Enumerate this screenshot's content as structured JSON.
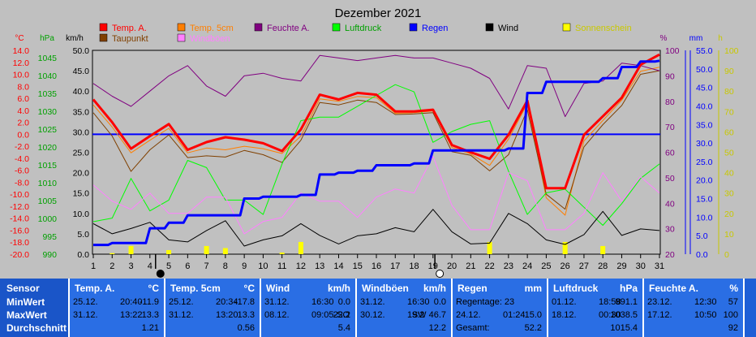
{
  "chart_data": {
    "type": "line",
    "title": "Dezember 2021",
    "x": [
      1,
      2,
      3,
      4,
      5,
      6,
      7,
      8,
      9,
      10,
      11,
      12,
      13,
      14,
      15,
      16,
      17,
      18,
      19,
      20,
      21,
      22,
      23,
      24,
      25,
      26,
      27,
      28,
      29,
      30,
      31
    ],
    "axes": {
      "temp_c": {
        "label": "°C",
        "ticks": [
          "14.0",
          "12.0",
          "10.0",
          "8.0",
          "6.0",
          "4.0",
          "2.0",
          "0.0",
          "-2.0",
          "-4.0",
          "-6.0",
          "-8.0",
          "-10.0",
          "-12.0",
          "-14.0",
          "-16.0",
          "-18.0",
          "-20.0"
        ],
        "range": [
          -20,
          14
        ]
      },
      "pressure_hpa": {
        "label": "hPa",
        "ticks": [
          "1045",
          "1040",
          "1035",
          "1030",
          "1025",
          "1020",
          "1015",
          "1010",
          "1005",
          "1000",
          "995",
          "990"
        ],
        "range": [
          990,
          1046.5
        ]
      },
      "wind_kmh": {
        "label": "km/h",
        "ticks": [
          "50.0",
          "45.0",
          "40.0",
          "35.0",
          "30.0",
          "25.0",
          "20.0",
          "15.0",
          "10.0",
          "5.0",
          "0.0"
        ],
        "range": [
          0,
          50
        ]
      },
      "humidity_pct": {
        "label": "%",
        "ticks": [
          "100",
          "90",
          "80",
          "70",
          "60",
          "50",
          "40",
          "30",
          "20"
        ],
        "range": [
          20,
          100
        ]
      },
      "rain_mm": {
        "label": "mm",
        "ticks": [
          "55.0",
          "50.0",
          "45.0",
          "40.0",
          "35.0",
          "30.0",
          "25.0",
          "20.0",
          "15.0",
          "10.0",
          "5.0",
          "0.0"
        ],
        "range": [
          0,
          55
        ]
      },
      "sun_h": {
        "label": "h",
        "ticks": [
          "100",
          "90",
          "80",
          "70",
          "60",
          "50",
          "40",
          "30",
          "20",
          "10",
          "0"
        ],
        "range": [
          0,
          100
        ]
      }
    },
    "legend": [
      {
        "name": "Temp. A.",
        "color": "#ff0000"
      },
      {
        "name": "Temp. 5cm",
        "color": "#ff7f00"
      },
      {
        "name": "Feuchte A.",
        "color": "#800080"
      },
      {
        "name": "Luftdruck",
        "color": "#00ff00"
      },
      {
        "name": "Regen",
        "color": "#0000ff"
      },
      {
        "name": "Wind",
        "color": "#000000"
      },
      {
        "name": "Sonnenschein",
        "color": "#ffff00"
      },
      {
        "name": "Taupunkt",
        "color": "#804000"
      },
      {
        "name": "Windböen",
        "color": "#ff80ff"
      }
    ],
    "series": [
      {
        "name": "Temp. A.",
        "axis": "temp_c",
        "color": "#ff0000",
        "width": 3,
        "values": [
          5.8,
          2.0,
          -2.4,
          -0.3,
          1.7,
          -2.6,
          -1.3,
          -0.5,
          -0.9,
          -1.5,
          -2.8,
          0.8,
          6.6,
          5.8,
          6.9,
          6.6,
          3.8,
          3.8,
          4.1,
          -1.8,
          -3.0,
          -4.1,
          -0.1,
          5.6,
          -9.0,
          -9.0,
          -0.1,
          3.0,
          6.1,
          11.6,
          13.3
        ]
      },
      {
        "name": "Temp. 5cm",
        "axis": "temp_c",
        "color": "#ff7f00",
        "width": 1,
        "values": [
          4.9,
          1.2,
          -3.1,
          -1.0,
          1.0,
          -3.1,
          -2.3,
          -2.6,
          -2.0,
          -2.4,
          -3.2,
          -0.3,
          5.9,
          5.5,
          6.3,
          6.1,
          3.5,
          3.6,
          3.9,
          -2.2,
          -3.3,
          -5.2,
          -0.8,
          5.1,
          -10.6,
          -13.5,
          -1.1,
          2.3,
          5.7,
          10.5,
          11.2
        ]
      },
      {
        "name": "Taupunkt",
        "axis": "temp_c",
        "color": "#804000",
        "width": 1,
        "values": [
          3.6,
          -0.3,
          -6.2,
          -2.6,
          -0.1,
          -3.9,
          -3.6,
          -3.8,
          -2.7,
          -3.4,
          -4.7,
          -1.0,
          5.3,
          4.9,
          5.7,
          5.3,
          3.3,
          3.4,
          3.6,
          -2.9,
          -3.5,
          -6.1,
          -3.4,
          4.1,
          -10.0,
          -12.5,
          -2.1,
          1.6,
          4.8,
          10.0,
          10.6
        ]
      },
      {
        "name": "Feuchte A.",
        "axis": "humidity_pct",
        "color": "#800080",
        "width": 1,
        "values": [
          87,
          82,
          78,
          84,
          90,
          94,
          86,
          82,
          90,
          91,
          89,
          88,
          98,
          97,
          96,
          97,
          98,
          97,
          97,
          95,
          93,
          89,
          77,
          94,
          93,
          74,
          87,
          88,
          95,
          94,
          92
        ]
      },
      {
        "name": "Luftdruck",
        "axis": "pressure_hpa",
        "color": "#00ff00",
        "width": 1,
        "values": [
          999,
          1000,
          1011,
          1002,
          1005,
          1016,
          1014,
          1005,
          1005,
          1001,
          1015,
          1027,
          1028,
          1028,
          1031,
          1034,
          1037,
          1035,
          1021,
          1024,
          1026,
          1027,
          1013,
          1001,
          1007,
          1008,
          1003,
          998,
          1004,
          1011,
          1015
        ]
      },
      {
        "name": "Wind",
        "axis": "wind_kmh",
        "color": "#000000",
        "width": 1,
        "values": [
          7.5,
          5.0,
          6.3,
          7.8,
          3.5,
          3.0,
          5.8,
          8.2,
          2.0,
          3.5,
          4.5,
          7.5,
          4.6,
          2.5,
          4.5,
          5.0,
          6.5,
          5.5,
          11.0,
          5.5,
          2.5,
          2.7,
          10.0,
          7.5,
          3.5,
          2.4,
          4.8,
          10.5,
          4.6,
          6.2,
          5.8
        ]
      },
      {
        "name": "Windböen",
        "axis": "wind_kmh",
        "color": "#ff80ff",
        "width": 1,
        "values": [
          17.0,
          13.0,
          11.0,
          15.0,
          10.0,
          10.0,
          14.0,
          14.0,
          5.0,
          8.0,
          9.0,
          15.0,
          13.0,
          13.0,
          9.0,
          14.0,
          16.0,
          15.0,
          24.0,
          12.0,
          6.0,
          6.0,
          20.0,
          18.0,
          6.0,
          6.0,
          10.0,
          20.0,
          13.0,
          19.0,
          15.0
        ]
      },
      {
        "name": "Regen",
        "axis": "rain_mm",
        "color": "#0000ff",
        "width": 3,
        "step": true,
        "values": [
          2.5,
          3.0,
          3.0,
          7.0,
          8.5,
          10.5,
          10.5,
          10.5,
          15.0,
          15.5,
          15.5,
          16.0,
          21.5,
          22.0,
          22.5,
          24.0,
          24.0,
          24.5,
          28.0,
          28.0,
          28.0,
          28.0,
          28.5,
          43.5,
          46.5,
          46.5,
          46.5,
          47.5,
          50.5,
          52.0,
          52.2
        ]
      },
      {
        "name": "Sonnenschein",
        "axis": "sun_h",
        "color": "#ffff00",
        "bar": true,
        "values": [
          0,
          0.5,
          4,
          0,
          2,
          0,
          4,
          3,
          0,
          0,
          0.8,
          6,
          0,
          0,
          0,
          0,
          0,
          0,
          0,
          0,
          0,
          6,
          0,
          0,
          0,
          6,
          0,
          4,
          0,
          0,
          0
        ]
      }
    ],
    "zero_line": {
      "axis": "temp_c",
      "value": 0,
      "color": "#0000ff"
    },
    "moon_markers": [
      {
        "x": 4.3,
        "symbol": "full"
      },
      {
        "x": 19.1,
        "symbol": "new"
      }
    ],
    "grid": false
  },
  "stats": {
    "sensor": {
      "title": "Sensor",
      "rows": [
        "MinWert",
        "MaxWert",
        "Durchschnitt"
      ]
    },
    "blocks": [
      {
        "title": "Temp. A.",
        "unit": "°C",
        "rows": [
          [
            "25.12.",
            "20:40",
            "-11.9"
          ],
          [
            "31.12.",
            "13:22",
            "13.3"
          ],
          [
            "",
            "",
            "1.21"
          ]
        ]
      },
      {
        "title": "Temp. 5cm",
        "unit": "°C",
        "rows": [
          [
            "25.12.",
            "20:34",
            "-17.8"
          ],
          [
            "31.12.",
            "13:20",
            "13.3"
          ],
          [
            "",
            "",
            "0.56"
          ]
        ]
      },
      {
        "title": "Wind",
        "unit": "km/h",
        "rows": [
          [
            "31.12.",
            "16:30",
            "0.0"
          ],
          [
            "08.12.",
            "09:05-SO",
            "22.2"
          ],
          [
            "",
            "",
            "5.4"
          ]
        ]
      },
      {
        "title": "Windböen",
        "unit": "km/h",
        "rows": [
          [
            "31.12.",
            "16:30",
            "0.0"
          ],
          [
            "30.12.",
            "19:2",
            "SW 46.7"
          ],
          [
            "",
            "",
            "12.2"
          ]
        ]
      },
      {
        "title": "Regen",
        "unit": "mm",
        "rows": [
          [
            "Regentage: 23",
            "",
            ""
          ],
          [
            "24.12.",
            "01:24",
            "15.0"
          ],
          [
            "Gesamt:",
            "",
            "52.2"
          ]
        ]
      },
      {
        "title": "Luftdruck",
        "unit": "hPa",
        "rows": [
          [
            "01.12.",
            "18:58",
            "991.1"
          ],
          [
            "18.12.",
            "00:30",
            "1038.5"
          ],
          [
            "",
            "",
            "1015.4"
          ]
        ]
      },
      {
        "title": "Feuchte A.",
        "unit": "%",
        "rows": [
          [
            "23.12.",
            "12:30",
            "57"
          ],
          [
            "17.12.",
            "10:50",
            "100"
          ],
          [
            "",
            "",
            "92"
          ]
        ]
      }
    ]
  }
}
